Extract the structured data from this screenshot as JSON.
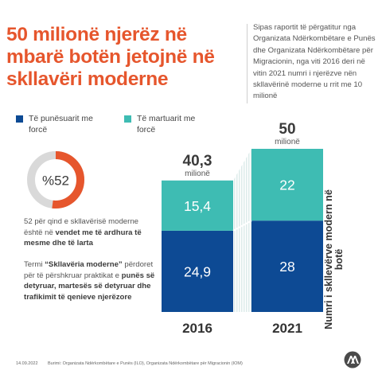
{
  "title": "50 milionë njerëz në mbarë botën jetojnë në skllavëri moderne",
  "intro": "Sipas raportit të përgatitur nga Organizata Ndërkombëtare e Punës dhe Organizata Ndërkombëtare për Migracionin, nga viti 2016 deri në vitin 2021 numri i njerëzve nën skllavërinë moderne u rrit me 10 milionë",
  "donut": {
    "label": "%52",
    "value": 52,
    "fill_color": "#e6562d",
    "track_color": "#d9d9d9"
  },
  "desc1": {
    "before": "52 për qind e skllavërisë moderne është në ",
    "bold": "vendet me të ardhura të mesme dhe të larta"
  },
  "desc2": {
    "before": "Termi ",
    "bold1": "“Skllavëria moderne”",
    "middle": " përdoret për të përshkruar praktikat e ",
    "bold2": "punës së detyruar, martesës së detyruar dhe trafikimit të qenieve njerëzore"
  },
  "side_label": "Numri i skllevërve modern në botë",
  "footer": {
    "date": "14.09.2022",
    "source": "Burimi: Organizata Ndërkombëtare e Punës (ILO), Organizata Ndërkombëtare për Migracionin (IOM)"
  },
  "logo_icon": "aa-agency-logo-icon",
  "chart_data": {
    "type": "bar",
    "stacked": true,
    "categories": [
      "2016",
      "2021"
    ],
    "series": [
      {
        "name": "Të punësuarit me forcë",
        "values": [
          24.9,
          28
        ],
        "labels": [
          "24,9",
          "28"
        ],
        "color": "#0d4a94"
      },
      {
        "name": "Të martuarit me forcë",
        "values": [
          15.4,
          22
        ],
        "labels": [
          "15,4",
          "22"
        ],
        "color": "#3ebcb3"
      }
    ],
    "totals": [
      {
        "value": "40,3",
        "unit": "milionë"
      },
      {
        "value": "50",
        "unit": "milionë"
      }
    ],
    "legend_position": "top-left",
    "ylim": [
      0,
      50
    ],
    "grid": false
  }
}
